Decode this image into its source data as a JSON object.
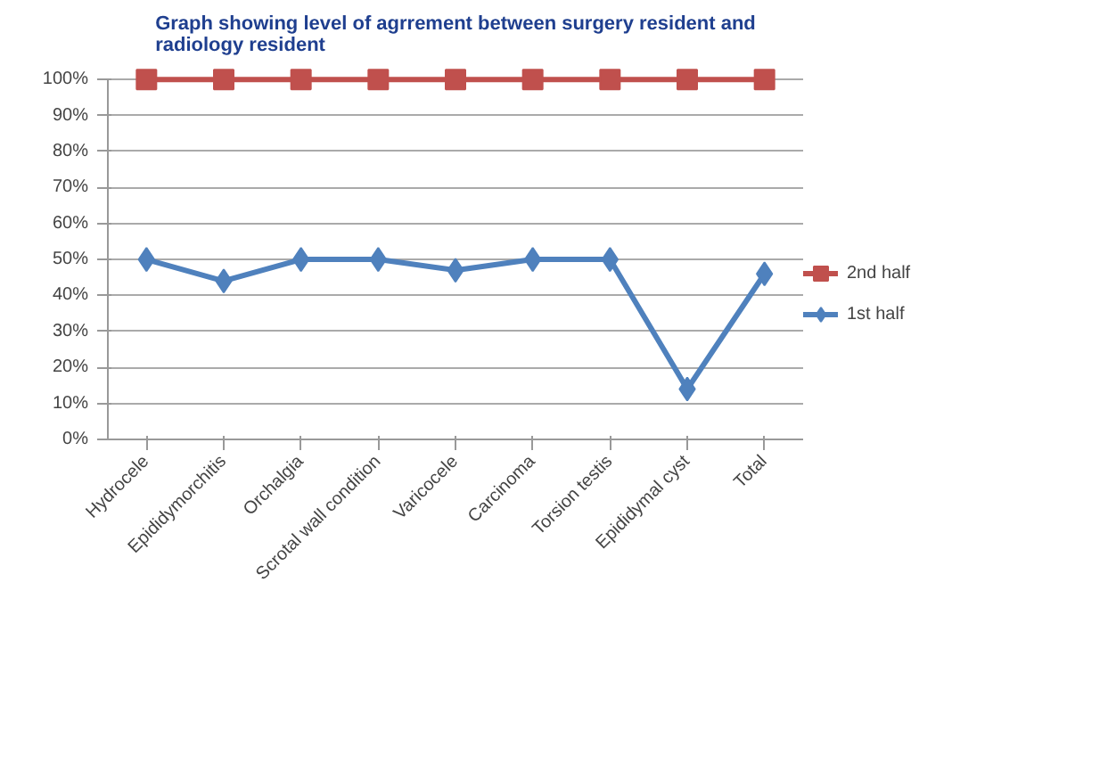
{
  "chart_data": {
    "type": "line",
    "title": "Graph showing level of agrrement between surgery resident and radiology resident",
    "categories": [
      "Hydrocele",
      "Epididymorchitis",
      "Orchalgia",
      "Scrotal wall condition",
      "Varicocele",
      "Carcinoma",
      "Torsion testis",
      "Epididymal cyst",
      "Total"
    ],
    "series": [
      {
        "name": "2nd half",
        "color": "#c0504d",
        "marker": "square",
        "values": [
          100,
          100,
          100,
          100,
          100,
          100,
          100,
          100,
          100
        ]
      },
      {
        "name": "1st half",
        "color": "#4f81bd",
        "marker": "diamond",
        "values": [
          50,
          44,
          50,
          50,
          47,
          50,
          50,
          14,
          46
        ]
      }
    ],
    "ylim": [
      0,
      100
    ],
    "yticks": [
      {
        "value": 0,
        "label": "0%"
      },
      {
        "value": 10,
        "label": "10%"
      },
      {
        "value": 20,
        "label": "20%"
      },
      {
        "value": 30,
        "label": "30%"
      },
      {
        "value": 40,
        "label": "40%"
      },
      {
        "value": 50,
        "label": "50%"
      },
      {
        "value": 60,
        "label": "60%"
      },
      {
        "value": 70,
        "label": "70%"
      },
      {
        "value": 80,
        "label": "80%"
      },
      {
        "value": 90,
        "label": "90%"
      },
      {
        "value": 100,
        "label": "100%"
      }
    ],
    "grid": "y",
    "legend": "right",
    "line_style": "solid"
  }
}
